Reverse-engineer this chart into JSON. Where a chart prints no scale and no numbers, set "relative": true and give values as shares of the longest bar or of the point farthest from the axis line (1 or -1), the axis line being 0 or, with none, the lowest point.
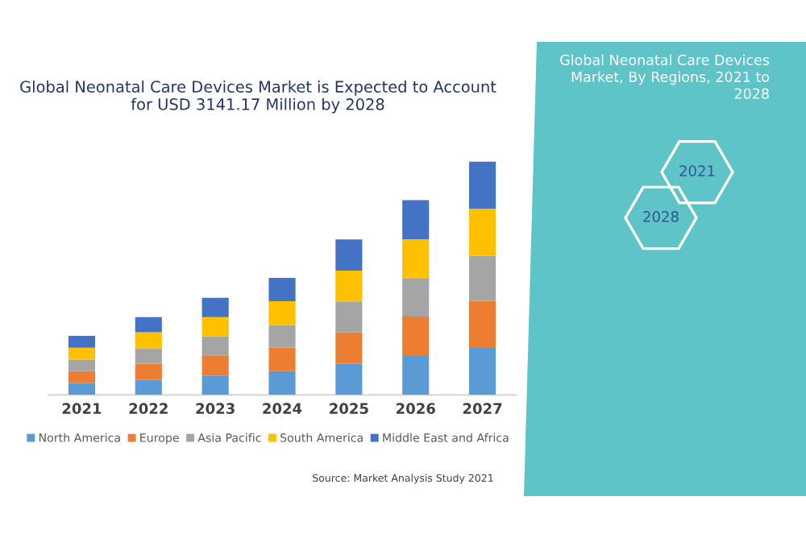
{
  "chart_data": {
    "type": "bar",
    "stacked": true,
    "relative": true,
    "title": "Global Neonatal Care Devices Market is Expected to Account\nfor USD 3141.17 Million by 2028",
    "categories": [
      "2021",
      "2022",
      "2023",
      "2024",
      "2025",
      "2026",
      "2027"
    ],
    "series": [
      {
        "name": "North America",
        "color": "#5b9bd5",
        "values": [
          0.051,
          0.065,
          0.083,
          0.102,
          0.134,
          0.167,
          0.201
        ]
      },
      {
        "name": "Europe",
        "color": "#ed7d31",
        "values": [
          0.051,
          0.069,
          0.086,
          0.1,
          0.134,
          0.169,
          0.201
        ]
      },
      {
        "name": "Asia Pacific",
        "color": "#a5a5a5",
        "values": [
          0.049,
          0.065,
          0.081,
          0.097,
          0.132,
          0.164,
          0.194
        ]
      },
      {
        "name": "South America",
        "color": "#ffc000",
        "values": [
          0.051,
          0.069,
          0.083,
          0.102,
          0.132,
          0.167,
          0.201
        ]
      },
      {
        "name": "Middle East and Africa",
        "color": "#4472c4",
        "values": [
          0.051,
          0.065,
          0.083,
          0.1,
          0.134,
          0.167,
          0.203
        ]
      }
    ],
    "legend": "bottom",
    "annotations": [
      "Global Neonatal Care Devices\nMarket, By Regions, 2021 to\n2028",
      "2021",
      "2028",
      "Source: Market Analysis Study 2021"
    ]
  }
}
